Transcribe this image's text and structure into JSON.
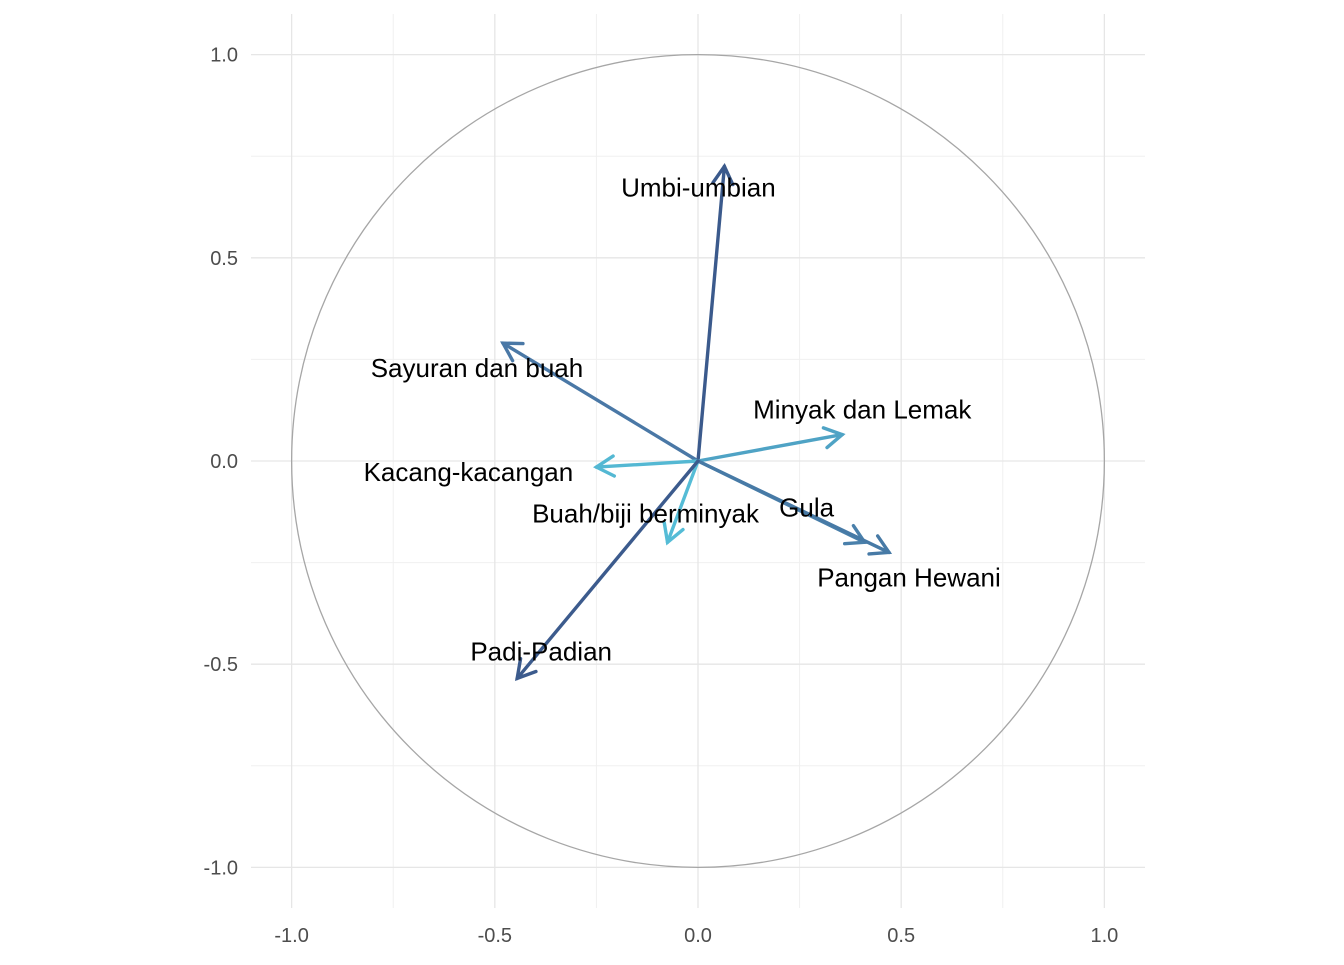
{
  "chart_data": {
    "type": "scatter",
    "subtype": "pca-correlation-circle",
    "title": "",
    "xlabel": "",
    "ylabel": "",
    "xlim": [
      -1.1,
      1.1
    ],
    "ylim": [
      -1.1,
      1.1
    ],
    "x_ticks": [
      -1.0,
      -0.5,
      0.0,
      0.5,
      1.0
    ],
    "y_ticks": [
      -1.0,
      -0.5,
      0.0,
      0.5,
      1.0
    ],
    "x_tick_labels": [
      "-1.0",
      "-0.5",
      "0.0",
      "0.5",
      "1.0"
    ],
    "y_tick_labels": [
      "-1.0",
      "-0.5",
      "0.0",
      "0.5",
      "1.0"
    ],
    "grid": true,
    "unit_circle": true,
    "legend": "none",
    "variables": [
      {
        "name": "Umbi-umbian",
        "x": 0.065,
        "y": 0.725,
        "color": "#3b5a8c"
      },
      {
        "name": "Sayuran dan buah",
        "x": -0.48,
        "y": 0.29,
        "color": "#4a78a6"
      },
      {
        "name": "Minyak dan Lemak",
        "x": 0.355,
        "y": 0.065,
        "color": "#4fa3c5"
      },
      {
        "name": "Kacang-kacangan",
        "x": -0.25,
        "y": -0.015,
        "color": "#54b8d3"
      },
      {
        "name": "Buah/biji berminyak",
        "x": -0.075,
        "y": -0.2,
        "color": "#55bcd6"
      },
      {
        "name": "Gula",
        "x": 0.41,
        "y": -0.2,
        "color": "#4a80ab"
      },
      {
        "name": "Pangan Hewani",
        "x": 0.47,
        "y": -0.225,
        "color": "#477aa6"
      },
      {
        "name": "Padi-Padian",
        "x": -0.445,
        "y": -0.535,
        "color": "#3c5b8d"
      }
    ]
  }
}
